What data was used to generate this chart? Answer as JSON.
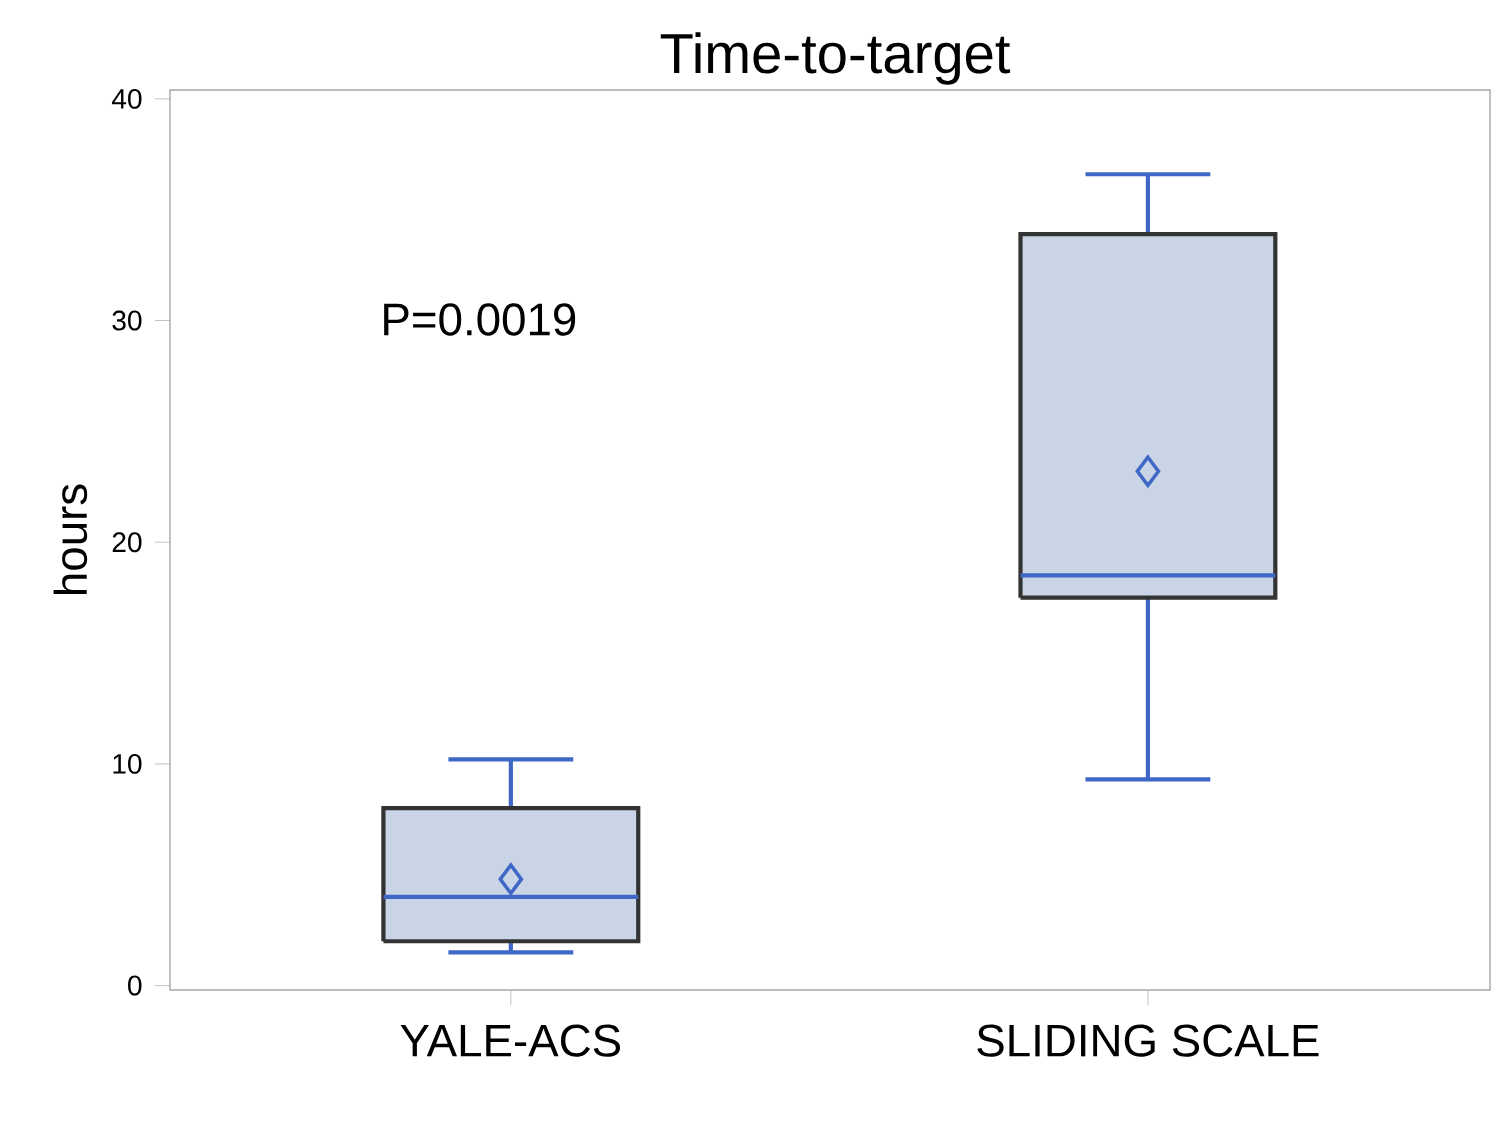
{
  "chart_data": {
    "type": "box",
    "title": "Time-to-target",
    "ylabel": "hours",
    "categories": [
      "YALE-ACS",
      "SLIDING SCALE"
    ],
    "boxes": [
      {
        "low": 1.5,
        "q1": 2.0,
        "median": 4.0,
        "q3": 8.0,
        "high": 10.2,
        "mean": 4.8
      },
      {
        "low": 9.3,
        "q1": 17.5,
        "median": 18.5,
        "q3": 33.9,
        "high": 36.6,
        "mean": 23.2
      }
    ],
    "color": "#c9d5e6",
    "ylim": [
      -0.2,
      40.4
    ],
    "yticks": [
      0,
      10,
      20,
      30,
      40
    ],
    "marker": "diamond",
    "grid": false,
    "annotations": [
      "P=0.0019"
    ]
  }
}
